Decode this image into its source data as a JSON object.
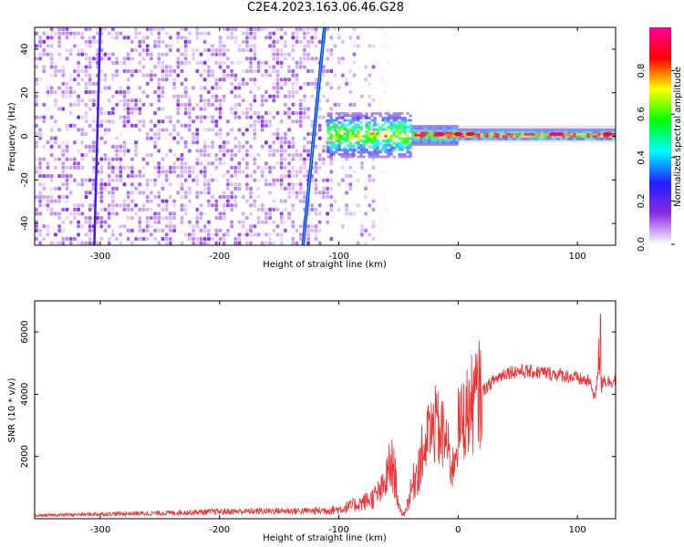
{
  "title": "C2E4.2023.163.06.46.G28",
  "colors": {
    "snr_line": "#ee3333",
    "spectrogram_base": "#6a1bff"
  },
  "chart_data": [
    {
      "type": "heatmap",
      "xlabel": "Height of straight line (km)",
      "ylabel": "Frequency (Hz)",
      "xlim": [
        -355,
        132
      ],
      "ylim": [
        -50,
        50
      ],
      "xticks": [
        -300,
        -200,
        -100,
        0,
        100
      ],
      "yticks": [
        -40,
        -20,
        0,
        20,
        40
      ],
      "colorbar": {
        "label": "Normalized spectral amplitude",
        "range": [
          0,
          1
        ],
        "ticks": [
          "0.0",
          "0.2",
          "0.4",
          "0.6",
          "0.8"
        ],
        "tick_values": [
          0.0,
          0.2,
          0.4,
          0.6,
          0.8
        ],
        "colormap": [
          "#ffffff",
          "#8a2be2",
          "#2020ff",
          "#00ffff",
          "#00ff00",
          "#ffff00",
          "#ff0000",
          "#ff0099"
        ]
      },
      "features": {
        "noise_region_x": [
          -355,
          -105
        ],
        "dominant_line_start": [
          -130,
          -50
        ],
        "dominant_line_end": [
          -112,
          50
        ],
        "secondary_line_start": [
          -305,
          -50
        ],
        "secondary_line_end": [
          -300,
          50
        ],
        "carrier_frequency_hz": 1
      }
    },
    {
      "type": "line",
      "xlabel": "Height of straight line (km)",
      "ylabel": "SNR (10 * v/v)",
      "xlim": [
        -355,
        132
      ],
      "ylim": [
        0,
        7000
      ],
      "xticks": [
        -300,
        -200,
        -100,
        0,
        100
      ],
      "yticks": [
        2000,
        4000,
        6000
      ],
      "series": [
        {
          "x": [
            -355,
            -300,
            -250,
            -200,
            -150,
            -120,
            -100,
            -90,
            -80,
            -70,
            -62,
            -58,
            -55,
            -52,
            -50,
            -48,
            -45,
            -40,
            -35,
            -30,
            -25,
            -20,
            -15,
            -10,
            -5,
            0,
            10,
            20,
            30,
            40,
            50,
            60,
            70,
            80,
            90,
            100,
            110,
            115,
            118,
            120,
            122,
            125,
            132
          ],
          "y": [
            100,
            150,
            180,
            230,
            250,
            250,
            300,
            400,
            520,
            700,
            1000,
            1600,
            1700,
            1200,
            400,
            200,
            150,
            800,
            1500,
            2000,
            2600,
            3000,
            2800,
            2500,
            1500,
            2900,
            3600,
            4100,
            4450,
            4700,
            4750,
            4720,
            4700,
            4650,
            4600,
            4500,
            4400,
            3900,
            5000,
            4200,
            4500,
            4400,
            4450
          ]
        }
      ]
    }
  ]
}
